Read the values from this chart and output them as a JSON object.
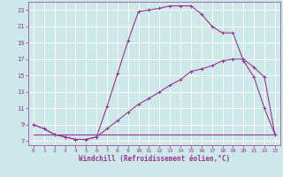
{
  "xlabel": "Windchill (Refroidissement éolien,°C)",
  "bg_color": "#cce8e8",
  "grid_color": "#ffffff",
  "line_color": "#993399",
  "xlim": [
    -0.5,
    23.5
  ],
  "ylim": [
    6.5,
    24.0
  ],
  "xticks": [
    0,
    1,
    2,
    3,
    4,
    5,
    6,
    7,
    8,
    9,
    10,
    11,
    12,
    13,
    14,
    15,
    16,
    17,
    18,
    19,
    20,
    21,
    22,
    23
  ],
  "yticks": [
    7,
    9,
    11,
    13,
    15,
    17,
    19,
    21,
    23
  ],
  "curve1_x": [
    0,
    1,
    2,
    3,
    4,
    5,
    6,
    7,
    8,
    9,
    10,
    11,
    12,
    13,
    14,
    15,
    16,
    17,
    18,
    19,
    20,
    21,
    22,
    23
  ],
  "curve1_y": [
    9.0,
    8.5,
    7.8,
    7.5,
    7.2,
    7.2,
    7.5,
    11.2,
    15.2,
    19.2,
    22.8,
    23.0,
    23.2,
    23.5,
    23.5,
    23.5,
    22.5,
    21.0,
    20.2,
    20.2,
    16.8,
    14.8,
    11.0,
    7.8
  ],
  "curve2_x": [
    0,
    1,
    2,
    3,
    4,
    5,
    6,
    7,
    8,
    9,
    10,
    11,
    12,
    13,
    14,
    15,
    16,
    17,
    18,
    19,
    20,
    21,
    22,
    23
  ],
  "curve2_y": [
    9.0,
    8.5,
    7.8,
    7.5,
    7.2,
    7.2,
    7.5,
    8.5,
    9.5,
    10.5,
    11.5,
    12.2,
    13.0,
    13.8,
    14.5,
    15.5,
    15.8,
    16.2,
    16.8,
    17.0,
    17.0,
    16.0,
    14.8,
    7.8
  ],
  "curve3_x": [
    0,
    9,
    22,
    23
  ],
  "curve3_y": [
    7.8,
    7.8,
    7.8,
    7.8
  ],
  "tick_fontsize": 4.5,
  "xlabel_fontsize": 5.5
}
